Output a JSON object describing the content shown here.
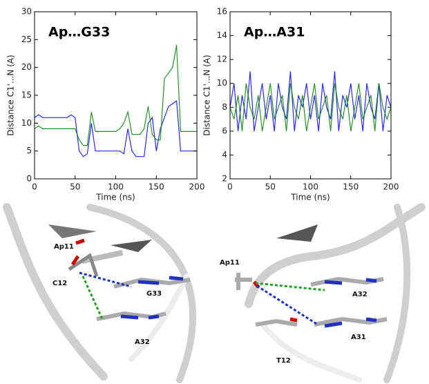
{
  "chart_data": [
    {
      "type": "line",
      "annotation": "Ap…G33",
      "xlabel": "Time (ns)",
      "ylabel": "Distance C1'...N (A)",
      "x": [
        0,
        5,
        10,
        15,
        20,
        25,
        30,
        35,
        40,
        45,
        50,
        55,
        60,
        65,
        70,
        75,
        80,
        85,
        90,
        95,
        100,
        105,
        110,
        115,
        120,
        125,
        130,
        135,
        140,
        145,
        150,
        155,
        160,
        165,
        170,
        175,
        180,
        185,
        190,
        195,
        200
      ],
      "series": [
        {
          "color": "#0000ff",
          "values": [
            11,
            11.5,
            11,
            11,
            11,
            11,
            11,
            11,
            11,
            11.5,
            11,
            5,
            4,
            4.5,
            10,
            5,
            5,
            5,
            5,
            5,
            5,
            5,
            4.5,
            9,
            5,
            4,
            4,
            4,
            10,
            11,
            5,
            9,
            11,
            13,
            13.5,
            14,
            5,
            5,
            5,
            5,
            5
          ]
        },
        {
          "color": "#008000",
          "values": [
            9,
            9.5,
            9,
            9,
            9,
            9,
            9,
            9,
            9,
            9,
            9,
            7,
            6,
            6,
            12,
            8.5,
            8.5,
            8.5,
            8.5,
            8.5,
            8.5,
            9,
            10,
            12,
            8,
            8,
            8,
            9,
            13,
            8,
            7,
            7,
            18,
            19,
            20,
            24,
            8.5,
            8.5,
            8.5,
            8.5,
            8.5
          ]
        }
      ],
      "xlim": [
        0,
        200
      ],
      "xticks": [
        0,
        50,
        100,
        150,
        200
      ],
      "ylim": [
        0,
        30
      ],
      "yticks": [
        0,
        5,
        10,
        15,
        20,
        25,
        30
      ]
    },
    {
      "type": "line",
      "annotation": "Ap…A31",
      "xlabel": "Time (ns)",
      "ylabel": "Distance C1'...N (A)",
      "x": [
        0,
        5,
        10,
        15,
        20,
        25,
        30,
        35,
        40,
        45,
        50,
        55,
        60,
        65,
        70,
        75,
        80,
        85,
        90,
        95,
        100,
        105,
        110,
        115,
        120,
        125,
        130,
        135,
        140,
        145,
        150,
        155,
        160,
        165,
        170,
        175,
        180,
        185,
        190,
        195,
        200
      ],
      "series": [
        {
          "color": "#0000ff",
          "values": [
            8,
            10,
            6,
            9,
            7,
            11,
            6,
            8,
            10,
            7,
            9,
            6,
            10,
            8,
            7,
            11,
            6,
            9,
            8,
            10,
            7,
            9,
            6,
            10,
            8,
            7,
            11,
            6,
            9,
            8,
            10,
            7,
            9,
            6,
            10,
            8,
            7,
            10,
            6,
            9,
            8
          ]
        },
        {
          "color": "#008000",
          "values": [
            8,
            7,
            9,
            6,
            10,
            8,
            7,
            9,
            6,
            8,
            10,
            7,
            8,
            9,
            6,
            10,
            8,
            7,
            9,
            6,
            8,
            10,
            7,
            8,
            9,
            6,
            10,
            8,
            7,
            9,
            6,
            8,
            10,
            7,
            8,
            9,
            6,
            10,
            8,
            7,
            8
          ]
        }
      ],
      "xlim": [
        0,
        200
      ],
      "xticks": [
        0,
        50,
        100,
        150,
        200
      ],
      "ylim": [
        2,
        16
      ],
      "yticks": [
        2,
        4,
        6,
        8,
        10,
        12,
        14,
        16
      ]
    }
  ],
  "structures": [
    {
      "labels": [
        "Ap11",
        "C12",
        "G33",
        "A32"
      ]
    },
    {
      "labels": [
        "Ap11",
        "A32",
        "A31",
        "T12"
      ]
    }
  ]
}
